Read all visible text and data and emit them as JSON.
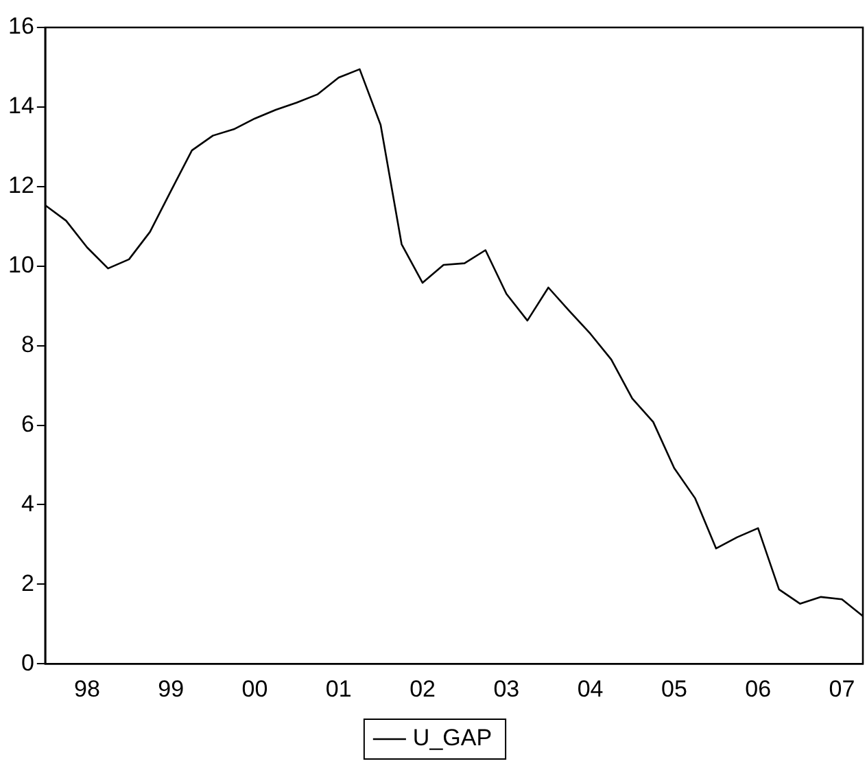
{
  "chart_data": {
    "type": "line",
    "categories": [
      null,
      null,
      "98",
      null,
      null,
      null,
      "99",
      null,
      null,
      null,
      "00",
      null,
      null,
      null,
      "01",
      null,
      null,
      null,
      "02",
      null,
      null,
      null,
      "03",
      null,
      null,
      null,
      "04",
      null,
      null,
      null,
      "05",
      null,
      null,
      null,
      "06",
      null,
      null,
      null,
      "07",
      null
    ],
    "series": [
      {
        "name": "U_GAP",
        "color": "#000000",
        "values": [
          11.53,
          11.14,
          10.47,
          9.94,
          10.17,
          10.86,
          11.89,
          12.91,
          13.28,
          13.44,
          13.71,
          13.93,
          14.11,
          14.32,
          14.74,
          14.95,
          13.55,
          10.55,
          9.58,
          10.03,
          10.07,
          10.4,
          9.3,
          8.63,
          9.46,
          8.87,
          8.3,
          7.65,
          6.67,
          6.08,
          4.92,
          4.16,
          2.9,
          3.18,
          3.41,
          1.87,
          1.51,
          1.68,
          1.62,
          1.2
        ]
      }
    ],
    "ylim": [
      0,
      16
    ],
    "yticks": [
      0,
      2,
      4,
      6,
      8,
      10,
      12,
      14,
      16
    ],
    "grid": false,
    "legend": "bottom",
    "marker": "none",
    "line_style": "solid"
  }
}
